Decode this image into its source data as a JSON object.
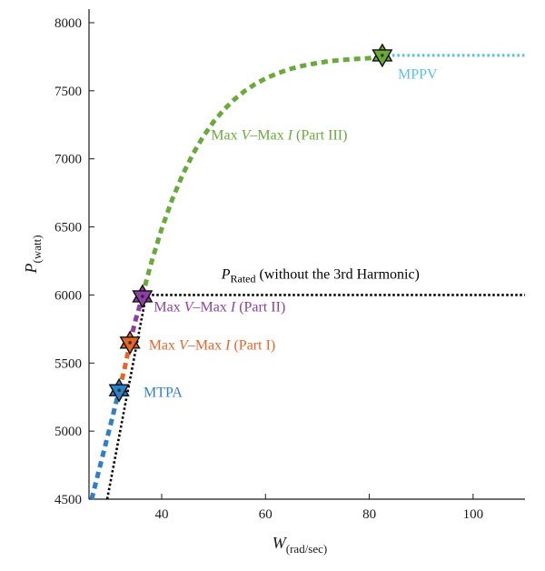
{
  "chart_data": {
    "type": "line",
    "title": "",
    "xlabel": {
      "main": "W",
      "sub": "(rad/sec)"
    },
    "ylabel": {
      "main": "P",
      "sub": "(watt)"
    },
    "xlim": [
      26,
      110
    ],
    "ylim": [
      4500,
      8100
    ],
    "x_ticks": [
      40,
      60,
      80,
      100
    ],
    "y_ticks": [
      4500,
      5000,
      5500,
      6000,
      6500,
      7000,
      7500,
      8000
    ],
    "grid": false,
    "series": [
      {
        "name": "MTPA",
        "color": "#2f7fc7",
        "style": "dashed-thick",
        "points": [
          [
            26.5,
            4500
          ],
          [
            28.5,
            4800
          ],
          [
            30.5,
            5100
          ],
          [
            31.8,
            5300
          ]
        ]
      },
      {
        "name": "Max V–Max I (Part I)",
        "color": "#e5662a",
        "style": "dashed-thick",
        "points": [
          [
            31.8,
            5300
          ],
          [
            32.8,
            5450
          ],
          [
            33.9,
            5650
          ]
        ]
      },
      {
        "name": "Max V–Max I (Part II)",
        "color": "#8e3fa4",
        "style": "dashed-thick",
        "points": [
          [
            33.9,
            5650
          ],
          [
            35.0,
            5820
          ],
          [
            36.3,
            5990
          ]
        ]
      },
      {
        "name": "Max V–Max I (Part III)",
        "color": "#6aaa3a",
        "style": "dashed-thick",
        "points": [
          [
            36.3,
            5990
          ],
          [
            37,
            6098
          ],
          [
            38,
            6238
          ],
          [
            40,
            6486
          ],
          [
            42,
            6699
          ],
          [
            44,
            6881
          ],
          [
            46,
            7034
          ],
          [
            48,
            7164
          ],
          [
            50,
            7272
          ],
          [
            52,
            7362
          ],
          [
            54,
            7436
          ],
          [
            56,
            7498
          ],
          [
            58,
            7549
          ],
          [
            60,
            7590
          ],
          [
            62,
            7623
          ],
          [
            64,
            7651
          ],
          [
            66,
            7673
          ],
          [
            68,
            7690
          ],
          [
            70,
            7704
          ],
          [
            72,
            7716
          ],
          [
            74,
            7724
          ],
          [
            76,
            7730
          ],
          [
            78,
            7735
          ],
          [
            80,
            7739
          ],
          [
            82.5,
            7760
          ]
        ]
      },
      {
        "name": "MPPV",
        "color": "#5bbfe6",
        "style": "dotted",
        "points": [
          [
            82.5,
            7760
          ],
          [
            110,
            7760
          ]
        ]
      },
      {
        "name": "P Rated (without the 3rd Harmonic)",
        "color": "#000000",
        "style": "dotted-black",
        "points": [
          [
            29.5,
            4500
          ],
          [
            31.0,
            4800
          ],
          [
            32.5,
            5100
          ],
          [
            34.0,
            5400
          ],
          [
            35.5,
            5700
          ],
          [
            37.0,
            6000
          ],
          [
            110,
            6000
          ]
        ]
      }
    ],
    "markers": [
      {
        "x": 31.8,
        "y": 5300,
        "color": "#2f7fc7",
        "label": "MTPA"
      },
      {
        "x": 33.9,
        "y": 5650,
        "color": "#e5662a",
        "label": "Max V–Max I (Part I)"
      },
      {
        "x": 36.3,
        "y": 5990,
        "color": "#8e3fa4",
        "label": "Max V–Max I (Part II)"
      },
      {
        "x": 82.5,
        "y": 7760,
        "color": "#6aaa3a",
        "label": "MPPV transition"
      }
    ],
    "annotations": [
      {
        "id": "mtpa",
        "x": 36.5,
        "y": 5250,
        "color": "#2f7fc7",
        "parts": [
          {
            "t": "MTPA"
          }
        ]
      },
      {
        "id": "part1",
        "x": 37.5,
        "y": 5600,
        "color": "#e5662a",
        "parts": [
          {
            "t": "Max "
          },
          {
            "t": "V",
            "i": true
          },
          {
            "t": "–Max "
          },
          {
            "t": "I",
            "i": true
          },
          {
            "t": " (Part I)"
          }
        ]
      },
      {
        "id": "part2",
        "x": 38.5,
        "y": 5880,
        "color": "#8e3fa4",
        "parts": [
          {
            "t": "Max "
          },
          {
            "t": "V",
            "i": true
          },
          {
            "t": "–Max "
          },
          {
            "t": "I",
            "i": true
          },
          {
            "t": " (Part II)"
          }
        ]
      },
      {
        "id": "part3",
        "x": 49.5,
        "y": 7140,
        "color": "#6aaa3a",
        "parts": [
          {
            "t": "Max "
          },
          {
            "t": "V",
            "i": true
          },
          {
            "t": "–Max "
          },
          {
            "t": "I",
            "i": true
          },
          {
            "t": " (Part III)"
          }
        ]
      },
      {
        "id": "mppv",
        "x": 85.5,
        "y": 7590,
        "color": "#5bbfe6",
        "parts": [
          {
            "t": "MPPV"
          }
        ]
      },
      {
        "id": "prated",
        "x": 51.5,
        "y": 6120,
        "color": "#000000",
        "parts": [
          {
            "t": "P",
            "i": true
          },
          {
            "t": "Rated",
            "sub": true
          },
          {
            "t": " (without the 3rd Harmonic)"
          }
        ]
      }
    ]
  }
}
